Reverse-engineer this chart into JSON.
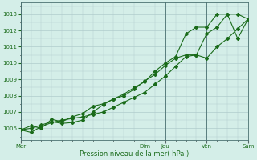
{
  "title": "",
  "xlabel": "Pression niveau de la mer( hPa )",
  "ylabel": "",
  "bg_color": "#d4eee8",
  "grid_color": "#b0cccc",
  "line_color": "#1a6b1a",
  "ylim": [
    1005.3,
    1013.7
  ],
  "xlim": [
    0,
    132
  ],
  "yticks": [
    1006,
    1007,
    1008,
    1009,
    1010,
    1011,
    1012,
    1013
  ],
  "day_ticks": [
    {
      "label": "Mer",
      "x": 0
    },
    {
      "label": "Dim",
      "x": 72
    },
    {
      "label": "Jeu",
      "x": 84
    },
    {
      "label": "Ven",
      "x": 108
    },
    {
      "label": "Sam",
      "x": 132
    }
  ],
  "line1": {
    "x": [
      0,
      6,
      12,
      18,
      24,
      30,
      36,
      42,
      48,
      54,
      60,
      66,
      72,
      78,
      84,
      90,
      96,
      102,
      108,
      114,
      120,
      126,
      132
    ],
    "y": [
      1005.9,
      1005.75,
      1006.1,
      1006.35,
      1006.5,
      1006.6,
      1006.7,
      1006.85,
      1007.0,
      1007.3,
      1007.6,
      1007.9,
      1008.2,
      1008.7,
      1009.2,
      1009.8,
      1010.4,
      1010.5,
      1010.3,
      1011.0,
      1011.5,
      1012.1,
      1012.7
    ]
  },
  "line2": {
    "x": [
      0,
      6,
      12,
      18,
      24,
      30,
      36,
      42,
      48,
      54,
      60,
      66,
      72,
      78,
      84,
      90,
      96,
      102,
      108,
      114,
      120,
      126,
      132
    ],
    "y": [
      1005.9,
      1006.15,
      1006.0,
      1006.55,
      1006.4,
      1006.7,
      1006.9,
      1007.35,
      1007.5,
      1007.8,
      1008.0,
      1008.4,
      1008.9,
      1009.3,
      1009.85,
      1010.3,
      1010.5,
      1010.5,
      1011.8,
      1012.2,
      1013.0,
      1013.0,
      1012.7
    ]
  },
  "line3": {
    "x": [
      0,
      6,
      12,
      18,
      24,
      30,
      36,
      42,
      48,
      54,
      60,
      66,
      72,
      78,
      84,
      90,
      96,
      102,
      108,
      114,
      120,
      126,
      132
    ],
    "y": [
      1005.9,
      1006.0,
      1006.2,
      1006.4,
      1006.3,
      1006.35,
      1006.5,
      1007.0,
      1007.45,
      1007.8,
      1008.1,
      1008.5,
      1008.85,
      1009.5,
      1010.0,
      1010.4,
      1011.8,
      1012.2,
      1012.2,
      1013.0,
      1013.0,
      1011.5,
      1012.7
    ]
  },
  "major_ticks_x": [
    0,
    72,
    84,
    108,
    132
  ]
}
